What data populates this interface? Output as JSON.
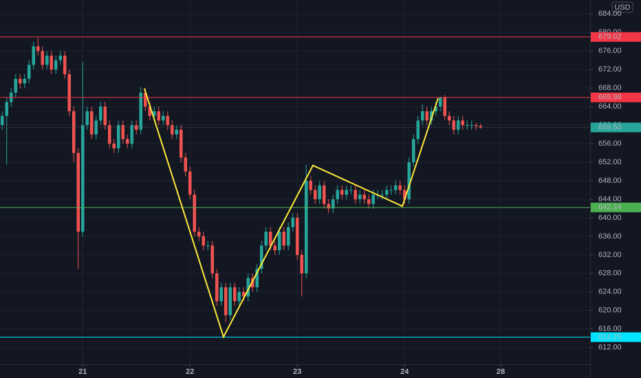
{
  "chart_data": {
    "type": "candlestick",
    "currency": "USD",
    "open": [
      660,
      662,
      665,
      667,
      670,
      669,
      670,
      673,
      677,
      676,
      673,
      675,
      672,
      674,
      675,
      671,
      663,
      654,
      637,
      660,
      663,
      658,
      661,
      664,
      660,
      656,
      655,
      660,
      657,
      656,
      660,
      659,
      667,
      664,
      662,
      663,
      661,
      662,
      660,
      658,
      659,
      653,
      650,
      645,
      637,
      636,
      634,
      634,
      628,
      622,
      625,
      619,
      625,
      622,
      624,
      623,
      627,
      625,
      629,
      634,
      637,
      634,
      633,
      637,
      634,
      638,
      640,
      632,
      628,
      648,
      646,
      644,
      647,
      643,
      642,
      644,
      646,
      645,
      646,
      646,
      644,
      645,
      644,
      643,
      645,
      645,
      645,
      646,
      646,
      647,
      646,
      644,
      652,
      657,
      661,
      663,
      661,
      663,
      664,
      666,
      662,
      661,
      659,
      661,
      660,
      660,
      660,
      659.8
    ],
    "high": [
      663,
      666,
      668,
      671,
      671,
      671,
      674,
      678,
      678.8,
      677,
      676,
      676,
      675,
      676,
      676,
      672,
      664,
      655,
      673.6,
      664,
      664,
      662,
      665,
      665,
      661,
      657,
      661,
      661,
      658,
      661,
      661,
      668.2,
      668,
      665,
      664,
      664,
      663,
      663,
      661,
      660,
      660,
      654,
      651,
      646,
      638,
      637,
      635,
      635,
      629,
      626,
      626,
      626,
      626,
      625,
      625,
      628,
      628,
      630,
      635,
      638,
      638,
      635,
      638,
      638,
      639,
      641,
      641,
      633,
      651.5,
      649,
      647,
      648,
      648,
      644,
      645,
      647,
      647,
      647,
      647,
      647,
      646,
      646,
      645,
      646,
      646,
      646,
      647,
      647,
      648,
      648,
      647,
      653,
      658,
      662,
      664.5,
      664,
      664,
      665,
      666.2,
      666.5,
      663,
      662,
      662,
      662,
      661,
      661,
      660.5,
      660.3
    ],
    "low": [
      659,
      651.5,
      664,
      666,
      668,
      668,
      669,
      672,
      675,
      672,
      672,
      671,
      671,
      673,
      670,
      662,
      652,
      629,
      636,
      659,
      657,
      657,
      660,
      659,
      655,
      654,
      654,
      656,
      655,
      655,
      658,
      658,
      663,
      661,
      661,
      660,
      660,
      659,
      657,
      657,
      652,
      649,
      644,
      636,
      635,
      633,
      633,
      627,
      621,
      621,
      617.5,
      618,
      621,
      621,
      622,
      622,
      624,
      624,
      628,
      633,
      633,
      632,
      632,
      633,
      633,
      637,
      631,
      623,
      627,
      645,
      643,
      643,
      642,
      641,
      641,
      643,
      644,
      644,
      645,
      643,
      643,
      643,
      642,
      642,
      644,
      644,
      644,
      645,
      645,
      645,
      643,
      643,
      651,
      656,
      660,
      660,
      660,
      662,
      663,
      661,
      660,
      658,
      658,
      659,
      659,
      659,
      659,
      659.2
    ],
    "close": [
      662,
      665,
      667,
      670,
      669,
      670,
      673,
      677,
      676,
      673,
      675,
      672,
      674,
      675,
      671,
      663,
      654,
      637,
      660,
      663,
      658,
      661,
      664,
      660,
      656,
      655,
      660,
      657,
      656,
      660,
      659,
      667,
      664,
      662,
      663,
      661,
      662,
      660,
      658,
      659,
      653,
      650,
      645,
      637,
      636,
      634,
      634,
      628,
      622,
      625,
      619,
      625,
      622,
      624,
      623,
      627,
      625,
      629,
      634,
      637,
      634,
      633,
      637,
      634,
      638,
      640,
      632,
      628,
      648,
      646,
      644,
      647,
      643,
      642,
      644,
      646,
      645,
      646,
      646,
      644,
      645,
      644,
      643,
      645,
      645,
      645,
      646,
      646,
      647,
      646,
      644,
      652,
      657,
      661,
      663,
      661,
      663,
      664,
      666,
      662,
      661,
      659,
      661,
      660,
      660,
      660,
      659.8,
      659.5
    ],
    "up_color": "#26a69a",
    "down_color": "#ef5350",
    "xlim": [
      -0.5,
      131.5
    ],
    "xticks": [
      {
        "value": 18,
        "label": "21"
      },
      {
        "value": 42,
        "label": "22"
      },
      {
        "value": 66,
        "label": "23"
      },
      {
        "value": 90,
        "label": "24"
      },
      {
        "value": 111.5,
        "label": "28"
      }
    ],
    "ylim": [
      608.4,
      687.0
    ],
    "yticks": [
      {
        "value": 612,
        "label": "612.00"
      },
      {
        "value": 616,
        "label": "616.00"
      },
      {
        "value": 620,
        "label": "620.00"
      },
      {
        "value": 624,
        "label": "624.00"
      },
      {
        "value": 628,
        "label": "628.00"
      },
      {
        "value": 632,
        "label": "632.00"
      },
      {
        "value": 636,
        "label": "636.00"
      },
      {
        "value": 640,
        "label": "640.00"
      },
      {
        "value": 644,
        "label": "644.00"
      },
      {
        "value": 648,
        "label": "648.00"
      },
      {
        "value": 652,
        "label": "652.00"
      },
      {
        "value": 656,
        "label": "656.00"
      },
      {
        "value": 660,
        "label": "660.00"
      },
      {
        "value": 664,
        "label": "664.00"
      },
      {
        "value": 668,
        "label": "668.00"
      },
      {
        "value": 672,
        "label": "672.00"
      },
      {
        "value": 676,
        "label": "676.00"
      },
      {
        "value": 680,
        "label": "680.00"
      },
      {
        "value": 684,
        "label": "684.00"
      }
    ],
    "grid": true,
    "levels": [
      {
        "value": 679.02,
        "color": "#f23645"
      },
      {
        "value": 665.98,
        "color": "#f23645"
      },
      {
        "value": 642.24,
        "color": "#4caf50"
      },
      {
        "value": 614.25,
        "color": "#00e5ff"
      }
    ],
    "last_price": {
      "value": 659.5,
      "label": "659.50",
      "color": "#26a69a"
    },
    "pattern": {
      "color": "#ffeb3b",
      "points": [
        {
          "x": 31.8,
          "y": 667.9
        },
        {
          "x": 49.5,
          "y": 614.3
        },
        {
          "x": 69.5,
          "y": 651.3
        },
        {
          "x": 89.5,
          "y": 642.5
        },
        {
          "x": 97.5,
          "y": 665.8
        }
      ]
    }
  }
}
